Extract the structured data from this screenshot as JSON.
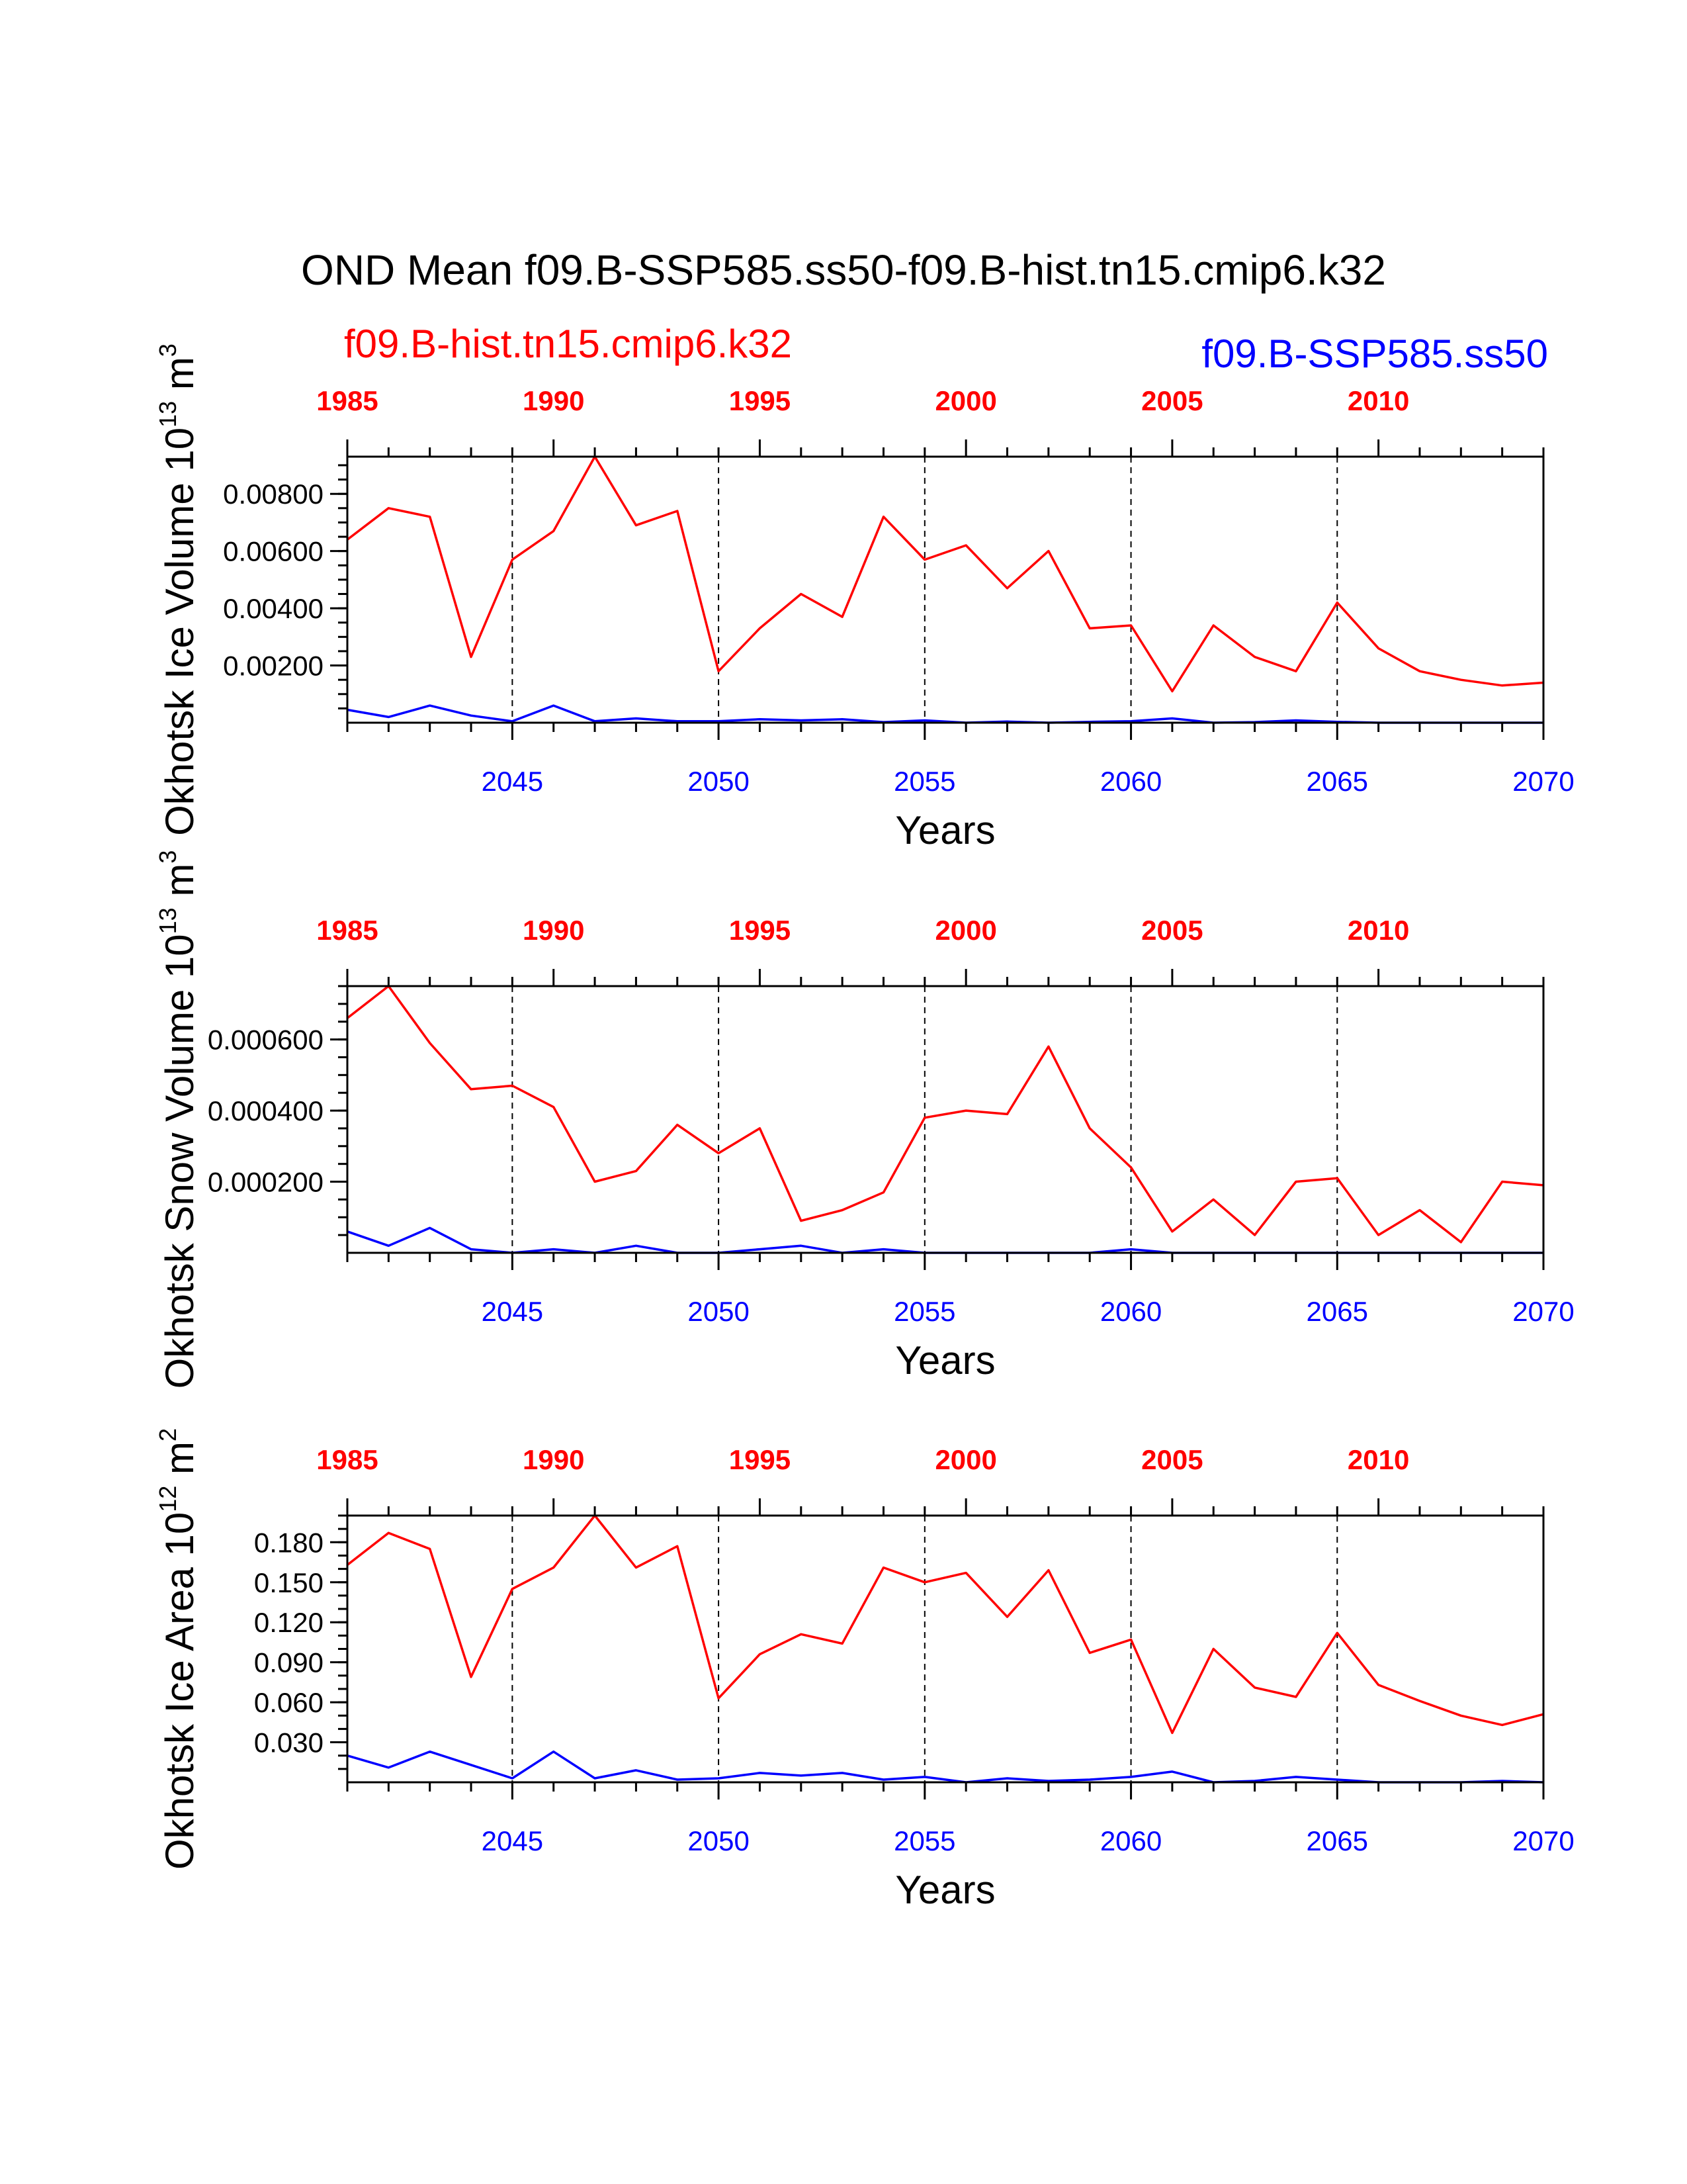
{
  "title": "OND Mean f09.B-SSP585.ss50-f09.B-hist.tn15.cmip6.k32",
  "legend": {
    "left": "f09.B-hist.tn15.cmip6.k32",
    "right": "f09.B-SSP585.ss50",
    "left_color": "#ff0000",
    "right_color": "#0000ff"
  },
  "colors": {
    "hist": "#ff0000",
    "ssp": "#0000ff",
    "axes": "#000000"
  },
  "chart_data": [
    {
      "type": "line",
      "ylabel": "Okhotsk Ice Volume 10",
      "ylabel_exp": "13",
      "ylabel_unit": " m",
      "ylabel_unit_exp": "3",
      "xlabel": "Years",
      "xlim_bottom": [
        2041,
        2070
      ],
      "xlim_top": [
        1985,
        2014
      ],
      "bottom_ticks": [
        2045,
        2050,
        2055,
        2060,
        2065,
        2070
      ],
      "top_ticks": [
        1985,
        1990,
        1995,
        2000,
        2005,
        2010
      ],
      "ylim": [
        0,
        0.0093
      ],
      "yticks": [
        0.002,
        0.004,
        0.006,
        0.008
      ],
      "ytick_labels": [
        "0.00200",
        "0.00400",
        "0.00600",
        "0.00800"
      ],
      "ytick_minor_step": 0.0005,
      "dashed_x": [
        2045,
        2050,
        2055,
        2060,
        2065
      ],
      "series": [
        {
          "name": "f09.B-hist.tn15.cmip6.k32",
          "color": "#ff0000",
          "x": [
            1985,
            1986,
            1987,
            1988,
            1989,
            1990,
            1991,
            1992,
            1993,
            1994,
            1995,
            1996,
            1997,
            1998,
            1999,
            2000,
            2001,
            2002,
            2003,
            2004,
            2005,
            2006,
            2007,
            2008,
            2009,
            2010,
            2011,
            2012,
            2013,
            2014
          ],
          "values": [
            0.0064,
            0.0075,
            0.0072,
            0.0023,
            0.0057,
            0.0067,
            0.0093,
            0.0069,
            0.0074,
            0.0018,
            0.0033,
            0.0045,
            0.0037,
            0.0072,
            0.0057,
            0.0062,
            0.0047,
            0.006,
            0.0033,
            0.0034,
            0.0011,
            0.0034,
            0.0023,
            0.0018,
            0.0042,
            0.0026,
            0.0018,
            0.0015,
            0.0013,
            0.0014
          ]
        },
        {
          "name": "f09.B-SSP585.ss50",
          "color": "#0000ff",
          "x": [
            2041,
            2042,
            2043,
            2044,
            2045,
            2046,
            2047,
            2048,
            2049,
            2050,
            2051,
            2052,
            2053,
            2054,
            2055,
            2056,
            2057,
            2058,
            2059,
            2060,
            2061,
            2062,
            2063,
            2064,
            2065,
            2066,
            2067,
            2068,
            2069,
            2070
          ],
          "values": [
            0.00045,
            0.0002,
            0.0006,
            0.00025,
            5e-05,
            0.0006,
            5e-05,
            0.00015,
            5e-05,
            5e-05,
            0.00012,
            8e-05,
            0.00012,
            2e-05,
            8e-05,
            0.0,
            4e-05,
            0.0,
            3e-05,
            5e-05,
            0.00015,
            0.0,
            2e-05,
            8e-05,
            3e-05,
            0.0,
            0.0,
            0.0,
            0.0,
            0.0
          ]
        }
      ]
    },
    {
      "type": "line",
      "ylabel": "Okhotsk Snow Volume 10",
      "ylabel_exp": "13",
      "ylabel_unit": " m",
      "ylabel_unit_exp": "3",
      "xlabel": "Years",
      "xlim_bottom": [
        2041,
        2070
      ],
      "xlim_top": [
        1985,
        2014
      ],
      "bottom_ticks": [
        2045,
        2050,
        2055,
        2060,
        2065,
        2070
      ],
      "top_ticks": [
        1985,
        1990,
        1995,
        2000,
        2005,
        2010
      ],
      "ylim": [
        0,
        0.00075
      ],
      "yticks": [
        0.0002,
        0.0004,
        0.0006
      ],
      "ytick_labels": [
        "0.000200",
        "0.000400",
        "0.000600"
      ],
      "ytick_minor_step": 5e-05,
      "dashed_x": [
        2045,
        2050,
        2055,
        2060,
        2065
      ],
      "series": [
        {
          "name": "f09.B-hist.tn15.cmip6.k32",
          "color": "#ff0000",
          "x": [
            1985,
            1986,
            1987,
            1988,
            1989,
            1990,
            1991,
            1992,
            1993,
            1994,
            1995,
            1996,
            1997,
            1998,
            1999,
            2000,
            2001,
            2002,
            2003,
            2004,
            2005,
            2006,
            2007,
            2008,
            2009,
            2010,
            2011,
            2012,
            2013,
            2014
          ],
          "values": [
            0.00066,
            0.00075,
            0.00059,
            0.00046,
            0.00047,
            0.00041,
            0.0002,
            0.00023,
            0.00036,
            0.00028,
            0.00035,
            9e-05,
            0.00012,
            0.00017,
            0.00038,
            0.0004,
            0.00039,
            0.00058,
            0.00035,
            0.00024,
            6e-05,
            0.00015,
            5e-05,
            0.0002,
            0.00021,
            5e-05,
            0.00012,
            3e-05,
            0.0002,
            0.00019
          ]
        },
        {
          "name": "f09.B-SSP585.ss50",
          "color": "#0000ff",
          "x": [
            2041,
            2042,
            2043,
            2044,
            2045,
            2046,
            2047,
            2048,
            2049,
            2050,
            2051,
            2052,
            2053,
            2054,
            2055,
            2056,
            2057,
            2058,
            2059,
            2060,
            2061,
            2062,
            2063,
            2064,
            2065,
            2066,
            2067,
            2068,
            2069,
            2070
          ],
          "values": [
            6e-05,
            2e-05,
            7e-05,
            1e-05,
            0.0,
            1e-05,
            0.0,
            2e-05,
            0.0,
            0.0,
            1e-05,
            2e-05,
            0.0,
            1e-05,
            0.0,
            0.0,
            0.0,
            0.0,
            0.0,
            1e-05,
            0.0,
            0.0,
            0.0,
            0.0,
            0.0,
            0.0,
            0.0,
            0.0,
            0.0,
            0.0
          ]
        }
      ]
    },
    {
      "type": "line",
      "ylabel": "Okhotsk Ice Area 10",
      "ylabel_exp": "12",
      "ylabel_unit": " m",
      "ylabel_unit_exp": "2",
      "xlabel": "Years",
      "xlim_bottom": [
        2041,
        2070
      ],
      "xlim_top": [
        1985,
        2014
      ],
      "bottom_ticks": [
        2045,
        2050,
        2055,
        2060,
        2065,
        2070
      ],
      "top_ticks": [
        1985,
        1990,
        1995,
        2000,
        2005,
        2010
      ],
      "ylim": [
        0,
        0.2
      ],
      "yticks": [
        0.03,
        0.06,
        0.09,
        0.12,
        0.15,
        0.18
      ],
      "ytick_labels": [
        "0.030",
        "0.060",
        "0.090",
        "0.120",
        "0.150",
        "0.180"
      ],
      "ytick_minor_step": 0.01,
      "dashed_x": [
        2045,
        2050,
        2055,
        2060,
        2065
      ],
      "series": [
        {
          "name": "f09.B-hist.tn15.cmip6.k32",
          "color": "#ff0000",
          "x": [
            1985,
            1986,
            1987,
            1988,
            1989,
            1990,
            1991,
            1992,
            1993,
            1994,
            1995,
            1996,
            1997,
            1998,
            1999,
            2000,
            2001,
            2002,
            2003,
            2004,
            2005,
            2006,
            2007,
            2008,
            2009,
            2010,
            2011,
            2012,
            2013,
            2014
          ],
          "values": [
            0.163,
            0.187,
            0.175,
            0.079,
            0.145,
            0.161,
            0.2,
            0.161,
            0.177,
            0.063,
            0.096,
            0.111,
            0.104,
            0.161,
            0.15,
            0.157,
            0.124,
            0.159,
            0.097,
            0.107,
            0.037,
            0.1,
            0.071,
            0.064,
            0.112,
            0.073,
            0.061,
            0.05,
            0.043,
            0.051
          ]
        },
        {
          "name": "f09.B-SSP585.ss50",
          "color": "#0000ff",
          "x": [
            2041,
            2042,
            2043,
            2044,
            2045,
            2046,
            2047,
            2048,
            2049,
            2050,
            2051,
            2052,
            2053,
            2054,
            2055,
            2056,
            2057,
            2058,
            2059,
            2060,
            2061,
            2062,
            2063,
            2064,
            2065,
            2066,
            2067,
            2068,
            2069,
            2070
          ],
          "values": [
            0.02,
            0.011,
            0.023,
            0.013,
            0.003,
            0.023,
            0.003,
            0.009,
            0.002,
            0.003,
            0.007,
            0.005,
            0.007,
            0.002,
            0.004,
            0.0,
            0.003,
            0.001,
            0.002,
            0.004,
            0.008,
            0.0,
            0.001,
            0.004,
            0.002,
            0.0,
            0.0,
            0.0,
            0.001,
            0.0
          ]
        }
      ]
    }
  ]
}
